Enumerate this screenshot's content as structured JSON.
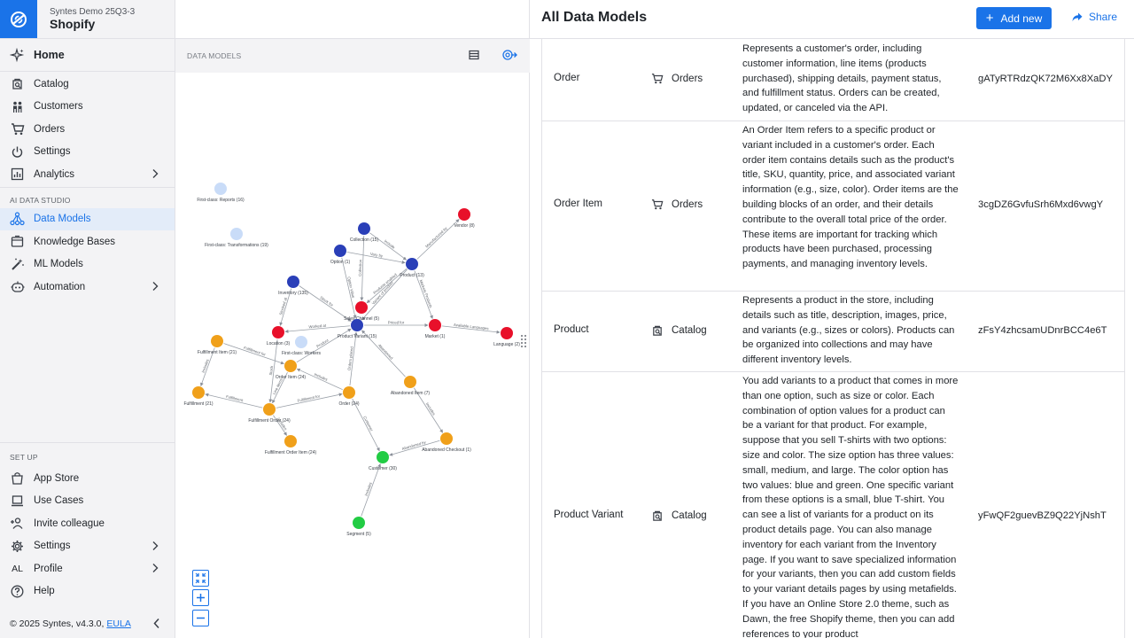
{
  "workspace": {
    "subtitle": "Syntes Demo 25Q3-3",
    "name": "Shopify"
  },
  "nav": {
    "home": "Home",
    "top_items": [
      {
        "label": "Catalog",
        "icon": "catalog-icon"
      },
      {
        "label": "Customers",
        "icon": "customers-icon"
      },
      {
        "label": "Orders",
        "icon": "orders-icon"
      },
      {
        "label": "Settings",
        "icon": "power-icon"
      },
      {
        "label": "Analytics",
        "icon": "analytics-icon"
      }
    ],
    "studio_section": "AI DATA STUDIO",
    "studio_items": [
      {
        "label": "Data Models",
        "icon": "data-models-icon",
        "active": true
      },
      {
        "label": "Knowledge Bases",
        "icon": "knowledge-icon"
      },
      {
        "label": "ML Models",
        "icon": "ml-icon"
      },
      {
        "label": "Automation",
        "icon": "automation-icon"
      }
    ],
    "setup_section": "SET UP",
    "setup_items": [
      {
        "label": "App Store",
        "icon": "app-store-icon"
      },
      {
        "label": "Use Cases",
        "icon": "use-cases-icon"
      },
      {
        "label": "Invite colleague",
        "icon": "invite-icon"
      },
      {
        "label": "Settings",
        "icon": "gear-icon"
      },
      {
        "label": "Profile",
        "icon": "avatar-initials"
      },
      {
        "label": "Help",
        "icon": "help-icon"
      }
    ],
    "profile_initials": "AL",
    "footer_text": "© 2025 Syntes, v4.3.0,",
    "footer_link": "EULA"
  },
  "graph_panel": {
    "title": "DATA MODELS",
    "nodes": [
      {
        "id": "reports",
        "label": "First-class: Reports (16)",
        "color": "#c9dcf8"
      },
      {
        "id": "transformations",
        "label": "First-class: Transformations (19)",
        "color": "#c9dcf8"
      },
      {
        "id": "collection",
        "label": "Collection (15)",
        "color": "#2a3fb8"
      },
      {
        "id": "vendor",
        "label": "Vendor (8)",
        "color": "#e8102a"
      },
      {
        "id": "option",
        "label": "Option (1)",
        "color": "#2a3fb8"
      },
      {
        "id": "product",
        "label": "Product (13)",
        "color": "#2a3fb8"
      },
      {
        "id": "inventory",
        "label": "Inventory (135)",
        "color": "#2a3fb8"
      },
      {
        "id": "sales_channel",
        "label": "Sales Channel (5)",
        "color": "#e8102a"
      },
      {
        "id": "product_variant",
        "label": "Product Variant (15)",
        "color": "#2a3fb8"
      },
      {
        "id": "market",
        "label": "Market (1)",
        "color": "#e8102a"
      },
      {
        "id": "language",
        "label": "Language (2)",
        "color": "#e8102a"
      },
      {
        "id": "location",
        "label": "Location (3)",
        "color": "#e8102a"
      },
      {
        "id": "workers",
        "label": "First-class: Workers",
        "color": "#c9dcf8"
      },
      {
        "id": "fulfillment_item",
        "label": "Fulfillment Item (21)",
        "color": "#f0a01a"
      },
      {
        "id": "order_item",
        "label": "Order Item (24)",
        "color": "#f0a01a"
      },
      {
        "id": "fulfillment",
        "label": "Fulfillment (21)",
        "color": "#f0a01a"
      },
      {
        "id": "order",
        "label": "Order (24)",
        "color": "#f0a01a"
      },
      {
        "id": "abandoned_item",
        "label": "Abandoned Item (7)",
        "color": "#f0a01a"
      },
      {
        "id": "fulfillment_order",
        "label": "Fulfillment Order (24)",
        "color": "#f0a01a"
      },
      {
        "id": "fulfillment_order_item",
        "label": "Fulfillment Order Item (24)",
        "color": "#f0a01a"
      },
      {
        "id": "abandoned_checkout",
        "label": "Abandoned Checkout (1)",
        "color": "#f0a01a"
      },
      {
        "id": "customer",
        "label": "Customer (30)",
        "color": "#22cc44"
      },
      {
        "id": "segment",
        "label": "Segment (5)",
        "color": "#22cc44"
      }
    ],
    "edges": [
      {
        "from": "collection",
        "to": "product",
        "label": "Include"
      },
      {
        "from": "product",
        "to": "vendor",
        "label": "Manufactured by"
      },
      {
        "from": "option",
        "to": "product",
        "label": "Vary by"
      },
      {
        "from": "option",
        "to": "product_variant",
        "label": "Option Value"
      },
      {
        "from": "collection",
        "to": "sales_channel",
        "label": "Collection"
      },
      {
        "from": "product",
        "to": "sales_channel",
        "label": "Products enabled"
      },
      {
        "from": "product",
        "to": "product_variant",
        "label": "Variant of product"
      },
      {
        "from": "product",
        "to": "market",
        "label": "Markets Products"
      },
      {
        "from": "inventory",
        "to": "product_variant",
        "label": "Stock for"
      },
      {
        "from": "inventory",
        "to": "location",
        "label": "Stocked at"
      },
      {
        "from": "product_variant",
        "to": "location",
        "label": "Worked at"
      },
      {
        "from": "product_variant",
        "to": "market",
        "label": "Priced for"
      },
      {
        "from": "market",
        "to": "language",
        "label": "Available Languages"
      },
      {
        "from": "order_item",
        "to": "product_variant",
        "label": "Product"
      },
      {
        "from": "order",
        "to": "product_variant",
        "label": "Orders placed"
      },
      {
        "from": "abandoned_item",
        "to": "product_variant",
        "label": "Abandoned"
      },
      {
        "from": "fulfillment_item",
        "to": "fulfillment",
        "label": "Includes"
      },
      {
        "from": "fulfillment_item",
        "to": "order_item",
        "label": "Fulfillment for"
      },
      {
        "from": "order",
        "to": "order_item",
        "label": "Includes"
      },
      {
        "from": "fulfillment_order",
        "to": "fulfillment",
        "label": "Fulfillment"
      },
      {
        "from": "fulfillment_order",
        "to": "order",
        "label": "Fulfillment for"
      },
      {
        "from": "order_item",
        "to": "fulfillment_order",
        "label": "Line items"
      },
      {
        "from": "fulfillment_order",
        "to": "fulfillment_order_item",
        "label": "Includes"
      },
      {
        "from": "location",
        "to": "fulfillment_order",
        "label": "Stock"
      },
      {
        "from": "order",
        "to": "customer",
        "label": "Customer"
      },
      {
        "from": "abandoned_item",
        "to": "abandoned_checkout",
        "label": "Includes"
      },
      {
        "from": "abandoned_checkout",
        "to": "customer",
        "label": "Abandoned by"
      },
      {
        "from": "segment",
        "to": "customer",
        "label": "Includes"
      }
    ]
  },
  "header": {
    "title": "All Data Models",
    "add_new": "Add new",
    "share": "Share"
  },
  "table": {
    "rows": [
      {
        "name": "Order",
        "product": "Orders",
        "product_icon": "cart-icon",
        "description": "Represents a customer's order, including customer information, line items (products purchased), shipping details, payment status, and fulfillment status. Orders can be created, updated, or canceled via the API.",
        "id": "gATyRTRdzQK72M6Xx8XaDY"
      },
      {
        "name": "Order Item",
        "product": "Orders",
        "product_icon": "cart-icon",
        "description": "An Order Item refers to a specific product or variant included in a customer's order. Each order item contains details such as the product's title, SKU, quantity, price, and associated variant information (e.g., size, color). Order items are the building blocks of an order, and their details contribute to the overall total price of the order. These items are important for tracking which products have been purchased, processing payments, and managing inventory levels.",
        "id": "3cgDZ6GvfuSrh6Mxd6vwgY"
      },
      {
        "name": "Product",
        "product": "Catalog",
        "product_icon": "catalog-icon",
        "description": "Represents a product in the store, including details such as title, description, images, price, and variants (e.g., sizes or colors). Products can be organized into collections and may have different inventory levels.",
        "id": "zFsY4zhcsamUDnrBCC4e6T"
      },
      {
        "name": "Product Variant",
        "product": "Catalog",
        "product_icon": "catalog-icon",
        "description": "You add variants to a product that comes in more than one option, such as size or color. Each combination of option values for a product can be a variant for that product. For example, suppose that you sell T-shirts with two options: size and color. The size option has three values: small, medium, and large. The color option has two values: blue and green. One specific variant from these options is a small, blue T-shirt. You can see a list of variants for a product on its product details page. You can also manage inventory for each variant from the Inventory page. If you want to save specialized information for your variants, then you can add custom fields to your variant details pages by using metafields. If you have an Online Store 2.0 theme, such as Dawn, the free Shopify theme, then you can add references to your product",
        "id": "yFwQF2guevBZ9Q22YjNshT"
      }
    ]
  }
}
